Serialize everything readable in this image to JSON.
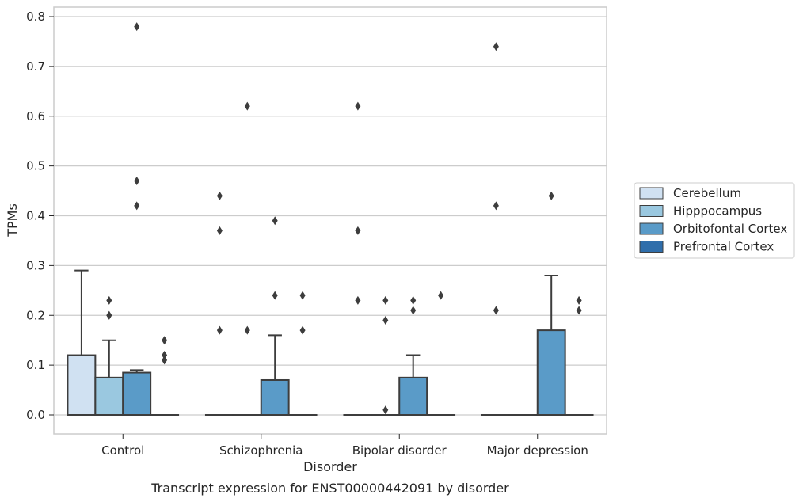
{
  "chart_data": {
    "type": "box",
    "title": "",
    "caption": "Transcript expression for ENST00000442091 by disorder",
    "xlabel": "Disorder",
    "ylabel": "TPMs",
    "ylim": [
      -0.038,
      0.82
    ],
    "yticks": [
      0.0,
      0.1,
      0.2,
      0.3,
      0.4,
      0.5,
      0.6,
      0.7,
      0.8
    ],
    "ytick_labels": [
      "0.0",
      "0.1",
      "0.2",
      "0.3",
      "0.4",
      "0.5",
      "0.6",
      "0.7",
      "0.8"
    ],
    "grid": true,
    "legend_position": "right",
    "categories": [
      "Control",
      "Schizophrenia",
      "Bipolar disorder",
      "Major depression"
    ],
    "series": [
      {
        "name": "Cerebellum",
        "color": "#d0e1f2",
        "boxes": [
          {
            "q1": 0.0,
            "median": 0.0,
            "q3": 0.12,
            "whisker_low": 0.0,
            "whisker_high": 0.29,
            "outliers": []
          },
          {
            "q1": 0.0,
            "median": 0.0,
            "q3": 0.0,
            "whisker_low": 0.0,
            "whisker_high": 0.0,
            "outliers": [
              0.44,
              0.37,
              0.17
            ]
          },
          {
            "q1": 0.0,
            "median": 0.0,
            "q3": 0.0,
            "whisker_low": 0.0,
            "whisker_high": 0.0,
            "outliers": [
              0.62,
              0.37,
              0.23
            ]
          },
          {
            "q1": 0.0,
            "median": 0.0,
            "q3": 0.0,
            "whisker_low": 0.0,
            "whisker_high": 0.0,
            "outliers": [
              0.74,
              0.42,
              0.21
            ]
          }
        ]
      },
      {
        "name": "Hipppocampus",
        "color": "#9ac8e0",
        "boxes": [
          {
            "q1": 0.0,
            "median": 0.0,
            "q3": 0.075,
            "whisker_low": 0.0,
            "whisker_high": 0.15,
            "outliers": [
              0.23,
              0.2,
              0.2
            ]
          },
          {
            "q1": 0.0,
            "median": 0.0,
            "q3": 0.0,
            "whisker_low": 0.0,
            "whisker_high": 0.0,
            "outliers": [
              0.62,
              0.17
            ]
          },
          {
            "q1": 0.0,
            "median": 0.0,
            "q3": 0.0,
            "whisker_low": 0.0,
            "whisker_high": 0.0,
            "outliers": [
              0.23,
              0.19,
              0.01
            ]
          },
          {
            "q1": 0.0,
            "median": 0.0,
            "q3": 0.0,
            "whisker_low": 0.0,
            "whisker_high": 0.0,
            "outliers": []
          }
        ]
      },
      {
        "name": "Orbitofontal Cortex",
        "color": "#5a9bc8",
        "boxes": [
          {
            "q1": 0.0,
            "median": 0.0,
            "q3": 0.085,
            "whisker_low": 0.0,
            "whisker_high": 0.09,
            "outliers": [
              0.78,
              0.47,
              0.42
            ]
          },
          {
            "q1": 0.0,
            "median": 0.0,
            "q3": 0.07,
            "whisker_low": 0.0,
            "whisker_high": 0.16,
            "outliers": [
              0.39,
              0.24
            ]
          },
          {
            "q1": 0.0,
            "median": 0.0,
            "q3": 0.075,
            "whisker_low": 0.0,
            "whisker_high": 0.12,
            "outliers": [
              0.23,
              0.21
            ]
          },
          {
            "q1": 0.0,
            "median": 0.0,
            "q3": 0.17,
            "whisker_low": 0.0,
            "whisker_high": 0.28,
            "outliers": [
              0.44
            ]
          }
        ]
      },
      {
        "name": "Prefrontal Cortex",
        "color": "#2f6eab",
        "boxes": [
          {
            "q1": 0.0,
            "median": 0.0,
            "q3": 0.0,
            "whisker_low": 0.0,
            "whisker_high": 0.0,
            "outliers": [
              0.15,
              0.12,
              0.11
            ]
          },
          {
            "q1": 0.0,
            "median": 0.0,
            "q3": 0.0,
            "whisker_low": 0.0,
            "whisker_high": 0.0,
            "outliers": [
              0.24,
              0.17
            ]
          },
          {
            "q1": 0.0,
            "median": 0.0,
            "q3": 0.0,
            "whisker_low": 0.0,
            "whisker_high": 0.0,
            "outliers": [
              0.24
            ]
          },
          {
            "q1": 0.0,
            "median": 0.0,
            "q3": 0.0,
            "whisker_low": 0.0,
            "whisker_high": 0.0,
            "outliers": [
              0.23,
              0.21
            ]
          }
        ]
      }
    ]
  }
}
